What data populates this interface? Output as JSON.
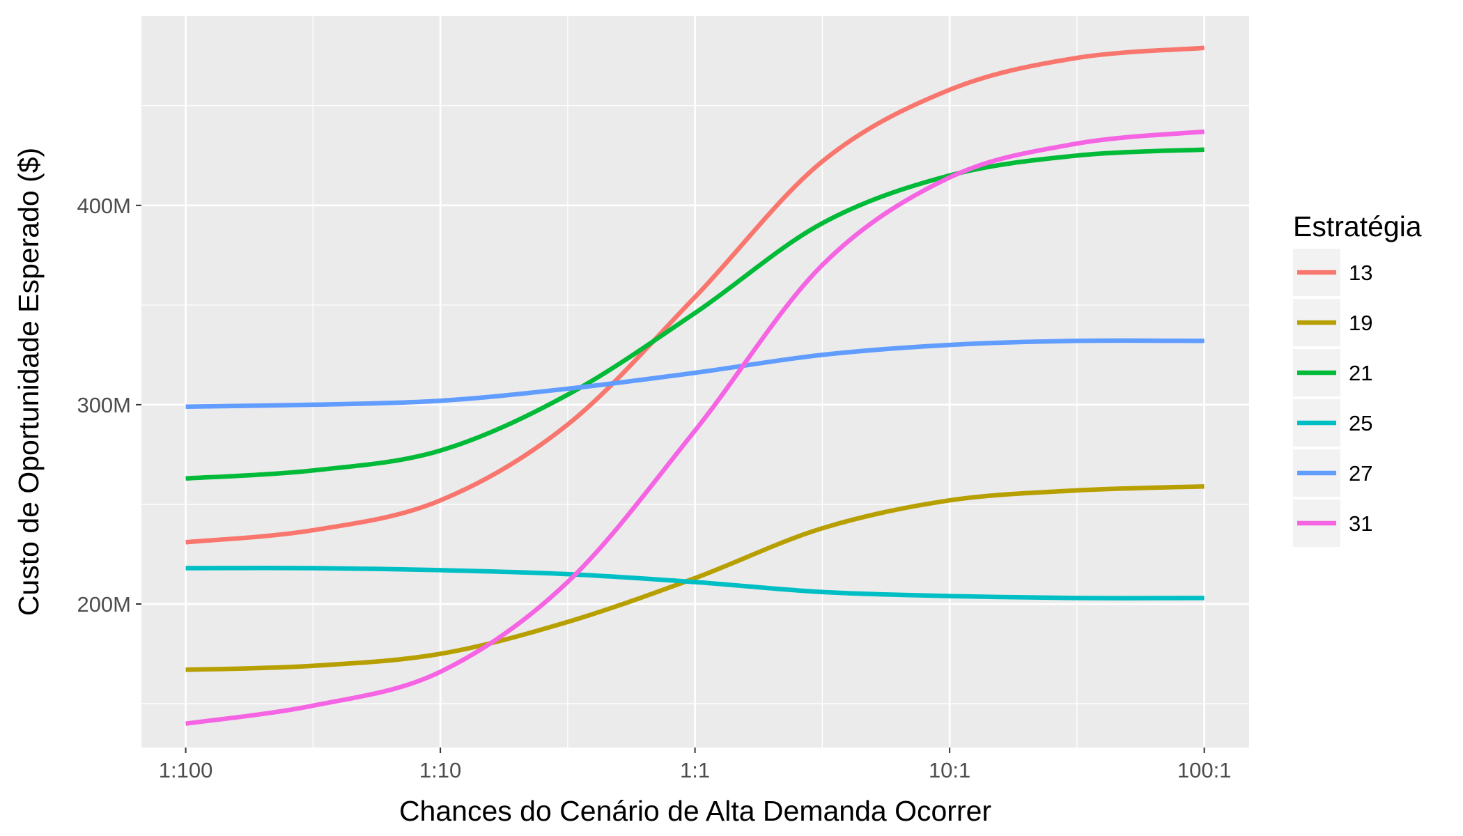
{
  "chart_data": {
    "type": "line",
    "xlabel": "Chances do Cenário de Alta Demanda Ocorrer",
    "ylabel": "Custo de Oportunidade Esperado ($)",
    "x_scale": "log",
    "x_ticks": [
      "1:100",
      "1:10",
      "1:1",
      "10:1",
      "100:1"
    ],
    "x_tick_values": [
      0.01,
      0.1,
      1,
      10,
      100
    ],
    "xlim": [
      0.0067,
      150
    ],
    "y_ticks": [
      "200M",
      "300M",
      "400M"
    ],
    "y_tick_values": [
      200,
      300,
      400
    ],
    "ylim": [
      128,
      495
    ],
    "y_unit": "M",
    "grid": true,
    "panel_background": "#ebebeb",
    "legend": {
      "title": "Estratégia",
      "position": "right"
    },
    "x": [
      0.01,
      0.0316,
      0.1,
      0.316,
      1,
      3.16,
      10,
      31.6,
      100
    ],
    "series": [
      {
        "name": "13",
        "color": "#f8766d",
        "values": [
          231,
          237,
          252,
          290,
          354,
          422,
          458,
          474,
          479
        ]
      },
      {
        "name": "19",
        "color": "#b79f00",
        "values": [
          167,
          169,
          175,
          191,
          213,
          238,
          252,
          257,
          259
        ]
      },
      {
        "name": "21",
        "color": "#00ba38",
        "values": [
          263,
          267,
          277,
          305,
          346,
          391,
          415,
          425,
          428
        ]
      },
      {
        "name": "25",
        "color": "#00bfc4",
        "values": [
          218,
          218,
          217,
          215,
          211,
          206,
          204,
          203,
          203
        ]
      },
      {
        "name": "27",
        "color": "#619cff",
        "values": [
          299,
          300,
          302,
          308,
          316,
          325,
          330,
          332,
          332
        ]
      },
      {
        "name": "31",
        "color": "#f564e3",
        "values": [
          140,
          149,
          166,
          211,
          287,
          370,
          414,
          431,
          437
        ]
      }
    ]
  }
}
